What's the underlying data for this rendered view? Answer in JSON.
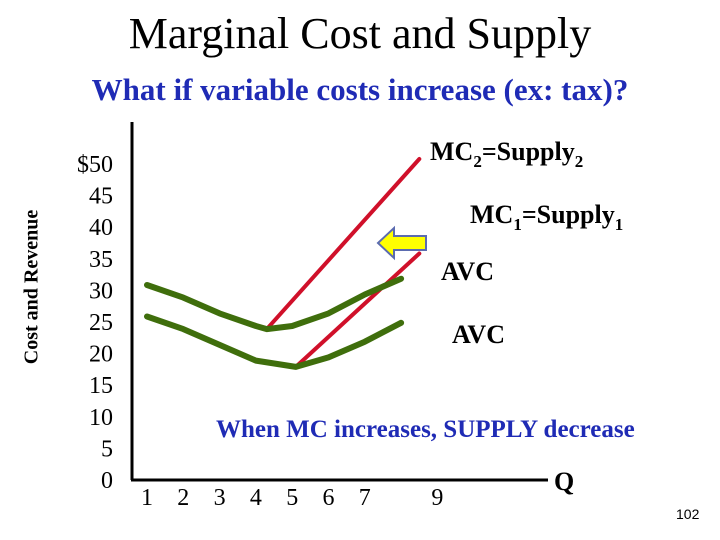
{
  "title": "Marginal Cost and Supply",
  "subtitle": "What if variable costs increase (ex: tax)?",
  "slide_number": "102",
  "chart_data": {
    "type": "line",
    "ylabel": "Cost and Revenue",
    "xlabel": "Q",
    "ylim": [
      0,
      50
    ],
    "x_ticks": [
      "1",
      "2",
      "3",
      "4",
      "5",
      "6",
      "7",
      "9"
    ],
    "y_ticks": [
      "$50",
      "45",
      "40",
      "35",
      "30",
      "25",
      "20",
      "15",
      "10",
      "5",
      "0"
    ],
    "series": [
      {
        "name": "MC2=Supply2",
        "x": [
          4.3,
          8.5
        ],
        "y": [
          23,
          50
        ]
      },
      {
        "name": "MC1=Supply1",
        "x": [
          5.1,
          8.5
        ],
        "y": [
          17,
          35
        ]
      },
      {
        "name": "AVC",
        "x": [
          1,
          2,
          3,
          4,
          4.3,
          5,
          6,
          7,
          8
        ],
        "y": [
          30,
          28,
          25.5,
          23.5,
          23,
          23.5,
          25.5,
          28.5,
          31
        ]
      },
      {
        "name": "AVC",
        "x": [
          1,
          2,
          3,
          4,
          5.1,
          6,
          7,
          8
        ],
        "y": [
          25,
          23,
          20.5,
          18,
          17,
          18.5,
          21,
          24
        ]
      }
    ],
    "labels": {
      "mc2": {
        "text": "MC",
        "sub1": "2",
        "mid": "=Supply",
        "sub2": "2"
      },
      "mc1": {
        "text": "MC",
        "sub1": "1",
        "mid": "=Supply",
        "sub2": "1"
      },
      "avc_upper": "AVC",
      "avc_lower": "AVC"
    },
    "annotation": "When MC increases, SUPPLY decrease",
    "colors": {
      "mc": "#d0102a",
      "avc": "#3f6e0c",
      "arrow_fill": "#ffff00",
      "arrow_stroke": "#5b6bb0",
      "note": "#1f2bb5"
    },
    "grid": false,
    "legend": "none"
  }
}
